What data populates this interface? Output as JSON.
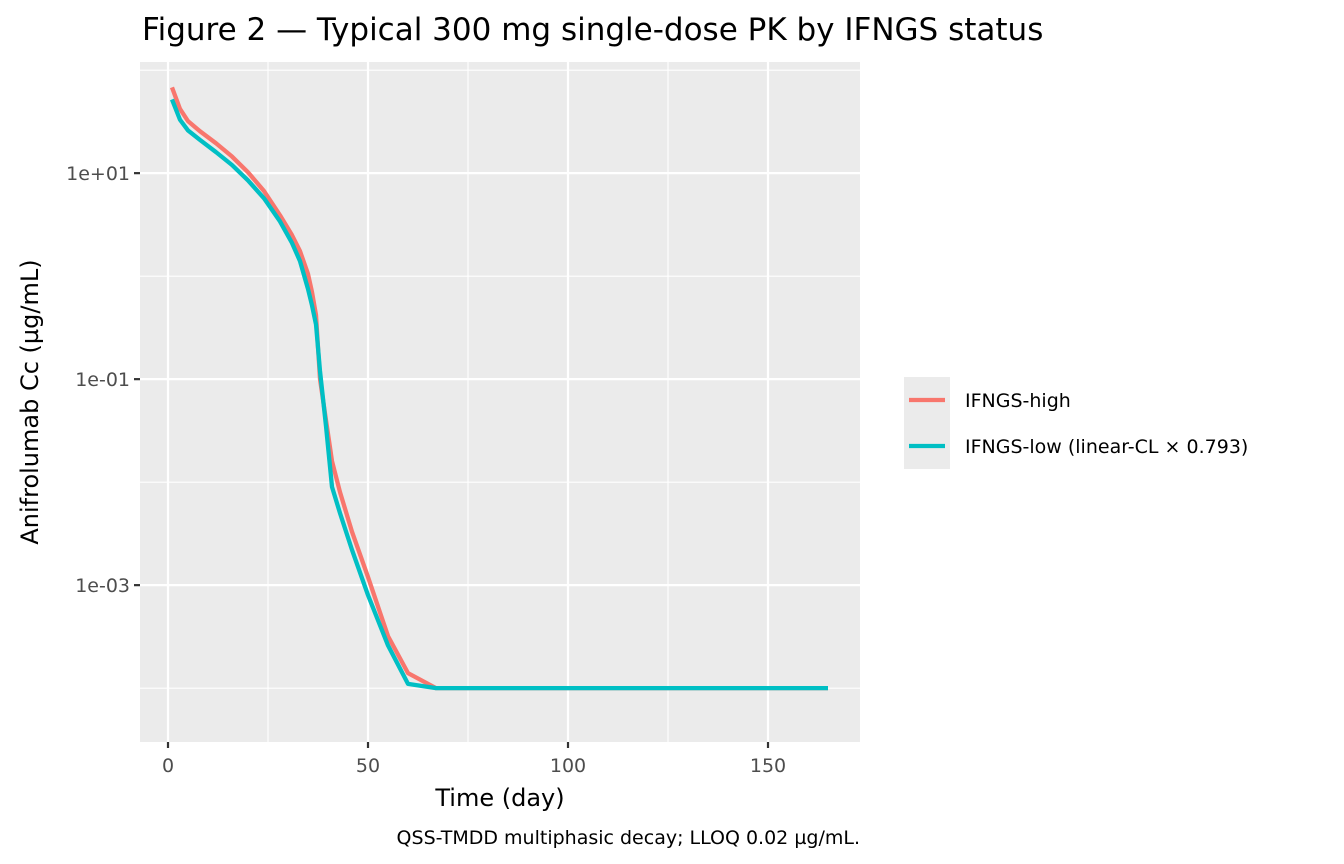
{
  "chart_data": {
    "type": "line",
    "title": "Figure 2 — Typical 300 mg single-dose PK by IFNGS status",
    "xlabel": "Time (day)",
    "ylabel": "Anifrolumab Cc (µg/mL)",
    "caption": "QSS-TMDD multiphasic decay; LLOQ 0.02 µg/mL.",
    "x_scale": "linear",
    "y_scale": "log10",
    "xlim": [
      -7,
      173
    ],
    "ylim": [
      3e-05,
      120
    ],
    "x_ticks": [
      0,
      50,
      100,
      150
    ],
    "x_tick_labels": [
      "0",
      "50",
      "100",
      "150"
    ],
    "y_ticks": [
      10,
      0.1,
      0.001
    ],
    "y_tick_labels": [
      "1e+01",
      "1e-01",
      "1e-03"
    ],
    "grid": true,
    "legend_position": "right",
    "series": [
      {
        "name": "IFNGS-high",
        "color": "#F8766D",
        "x": [
          1,
          3,
          5,
          8,
          12,
          16,
          20,
          24,
          28,
          31,
          33,
          35,
          36,
          37,
          38,
          39.5,
          41,
          43,
          46,
          50,
          55,
          60,
          67,
          100,
          165
        ],
        "y": [
          68,
          42,
          32,
          25.5,
          19.5,
          14.5,
          10.2,
          6.7,
          3.9,
          2.5,
          1.75,
          1.05,
          0.7,
          0.42,
          0.1,
          0.04,
          0.016,
          0.008,
          0.0033,
          0.0012,
          0.00032,
          0.00014,
          0.0001,
          0.0001,
          0.0001
        ]
      },
      {
        "name": "IFNGS-low (linear-CL × 0.793)",
        "color": "#00BFC4",
        "x": [
          1,
          3,
          5,
          8,
          12,
          16,
          20,
          24,
          28,
          31,
          33,
          35,
          36,
          37,
          38,
          39.5,
          41,
          43,
          46,
          50,
          55,
          60,
          67,
          100,
          165
        ],
        "y": [
          52,
          33,
          26,
          21,
          16,
          12,
          8.5,
          5.7,
          3.4,
          2.1,
          1.4,
          0.75,
          0.52,
          0.34,
          0.12,
          0.035,
          0.009,
          0.005,
          0.0022,
          0.0008,
          0.00026,
          0.00011,
          0.0001,
          0.0001,
          0.0001
        ]
      }
    ]
  }
}
